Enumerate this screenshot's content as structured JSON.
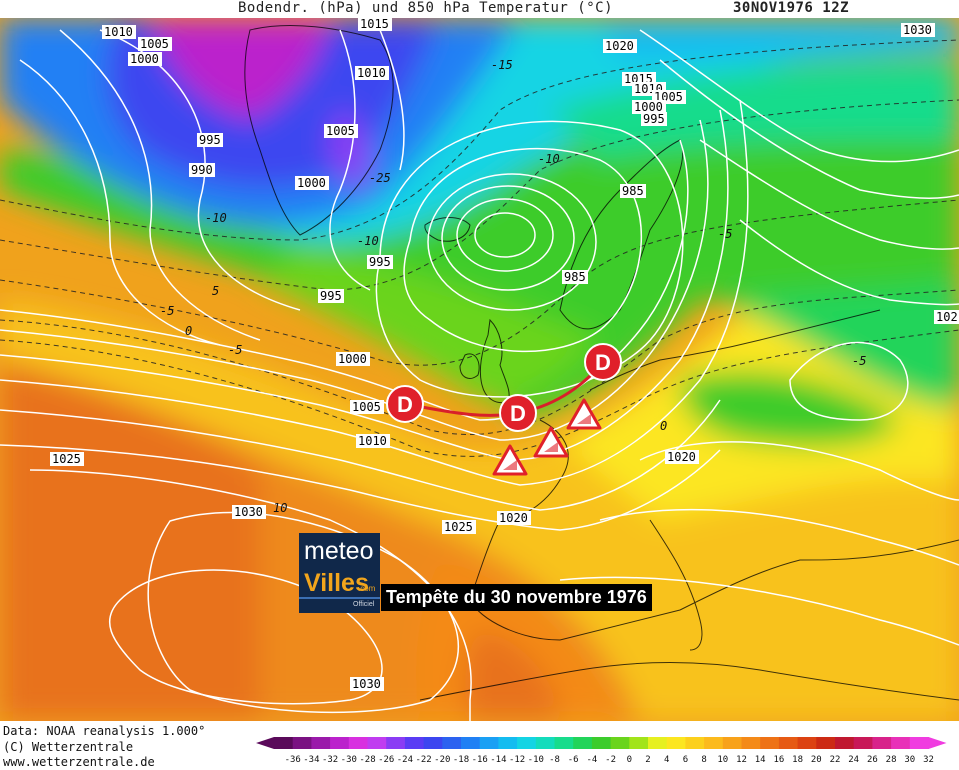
{
  "title": {
    "main": "Bodendr. (hPa) und 850 hPa Temperatur (°C)",
    "date": "30NOV1976 12Z"
  },
  "overlay": {
    "banner": "Tempête du 30 novembre 1976",
    "logo_line1": "meteo",
    "logo_line2": "Villes",
    "logo_dotcom": ".com",
    "logo_officiel": "Officiel"
  },
  "footer": {
    "data_source": "Data: NOAA reanalysis 1.000°",
    "copyright": "(C) Wetterzentrale",
    "website": "www.wetterzentrale.de"
  },
  "legend": {
    "ticks": [
      "-36",
      "-34",
      "-32",
      "-30",
      "-28",
      "-26",
      "-24",
      "-22",
      "-20",
      "-18",
      "-16",
      "-14",
      "-12",
      "-10",
      "-8",
      "-6",
      "-4",
      "-2",
      "0",
      "2",
      "4",
      "6",
      "8",
      "10",
      "12",
      "14",
      "16",
      "18",
      "20",
      "22",
      "24",
      "26",
      "28",
      "30",
      "32"
    ],
    "colors": [
      "#5a0a5a",
      "#7a1282",
      "#9a1aaa",
      "#bb22cc",
      "#d830e0",
      "#c03cf0",
      "#8a3cf4",
      "#5a3cf4",
      "#3c46f0",
      "#2c62f0",
      "#2080f4",
      "#1aa0f4",
      "#14bcf0",
      "#14d4e4",
      "#14dcbc",
      "#18dc8c",
      "#22d45a",
      "#3ccc2c",
      "#6ad41c",
      "#a2e41a",
      "#e6f020",
      "#fce620",
      "#fcd01c",
      "#fcba1c",
      "#f8a21a",
      "#f48a18",
      "#ee7216",
      "#e65a14",
      "#dc4212",
      "#cc2a14",
      "#c01830",
      "#c81858",
      "#d8228a",
      "#e830b8",
      "#f03ce0"
    ]
  },
  "pressure_labels": [
    {
      "text": "1015"
    },
    {
      "text": "1010"
    },
    {
      "text": "1005"
    },
    {
      "text": "1000"
    },
    {
      "text": "1010"
    },
    {
      "text": "1005"
    },
    {
      "text": "1000"
    },
    {
      "text": "995"
    },
    {
      "text": "990"
    },
    {
      "text": "995"
    },
    {
      "text": "995"
    },
    {
      "text": "1000"
    },
    {
      "text": "1005"
    },
    {
      "text": "1010"
    },
    {
      "text": "1025"
    },
    {
      "text": "1030"
    },
    {
      "text": "1025"
    },
    {
      "text": "1020"
    },
    {
      "text": "1030"
    },
    {
      "text": "1020"
    },
    {
      "text": "1015"
    },
    {
      "text": "1010"
    },
    {
      "text": "1005"
    },
    {
      "text": "1000"
    },
    {
      "text": "995"
    },
    {
      "text": "985"
    },
    {
      "text": "985"
    },
    {
      "text": "1020"
    },
    {
      "text": "1030"
    },
    {
      "text": "102"
    }
  ],
  "temperature_labels": [
    {
      "text": "-15"
    },
    {
      "text": "-10"
    },
    {
      "text": "-25"
    },
    {
      "text": "-10"
    },
    {
      "text": "-5"
    },
    {
      "text": "-10"
    },
    {
      "text": "-5"
    },
    {
      "text": "0"
    },
    {
      "text": "-5"
    },
    {
      "text": "5"
    },
    {
      "text": "10"
    },
    {
      "text": "-5"
    },
    {
      "text": "0"
    }
  ],
  "lows": [
    {
      "label": "D"
    },
    {
      "label": "D"
    },
    {
      "label": "D"
    }
  ],
  "warning_icon": "warning-triangle-icon",
  "colors": {
    "low_marker": "#e0202a",
    "front_line": "#d8202a",
    "isobar": "#ffffff",
    "isotherm": "#222222"
  }
}
